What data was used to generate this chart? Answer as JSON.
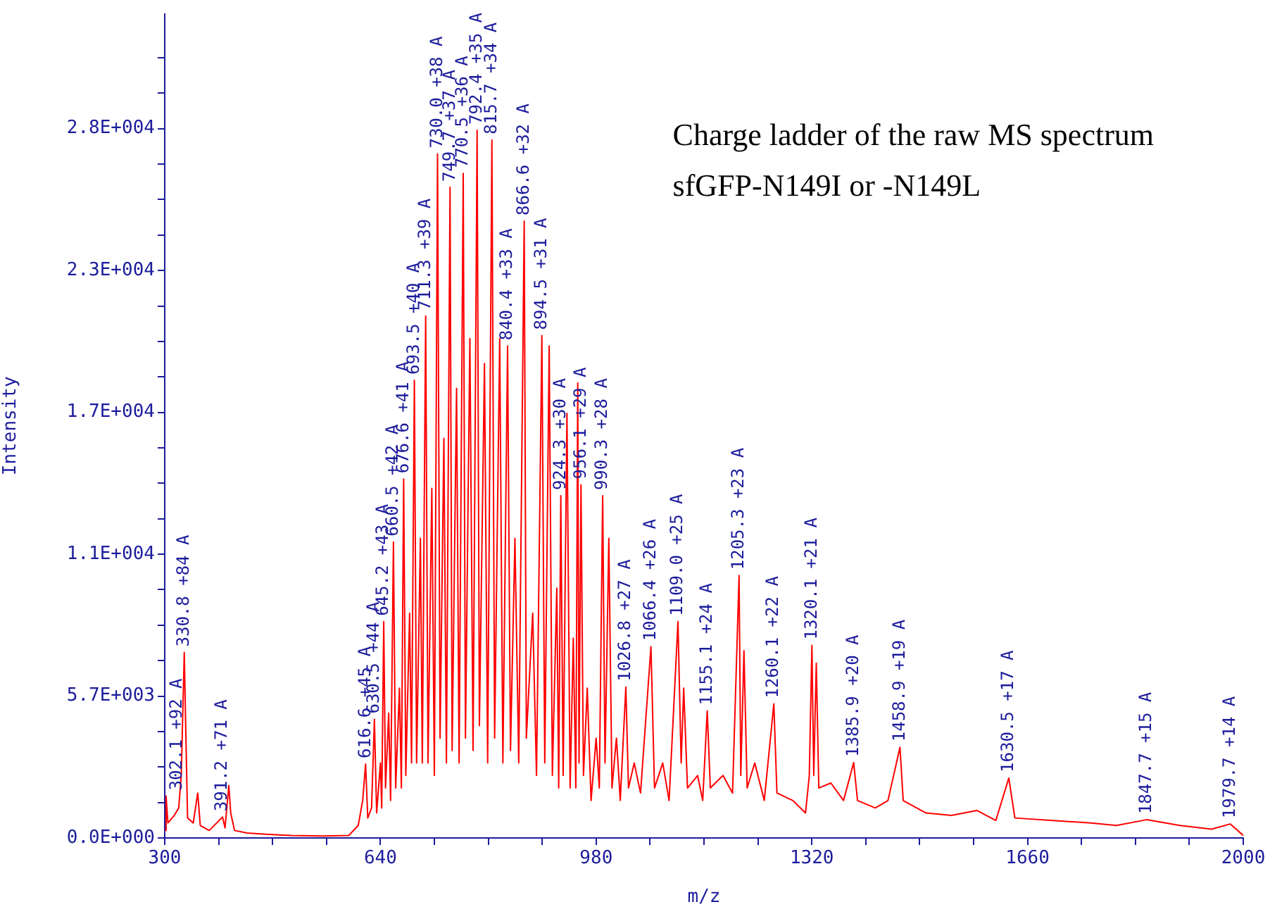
{
  "chart_data": {
    "type": "line",
    "title": "Charge ladder of the raw MS spectrum",
    "subtitle": "sfGFP-N149I or -N149L",
    "xlabel": "m/z",
    "ylabel": "Intensity",
    "xlim": [
      300,
      2000
    ],
    "xticks": [
      300,
      {
        "value": 385,
        "label": null
      },
      {
        "value": 470,
        "label": null
      },
      {
        "value": 555,
        "label": null
      },
      640,
      {
        "value": 725,
        "label": null
      },
      {
        "value": 810,
        "label": null
      },
      {
        "value": 895,
        "label": null
      },
      980,
      {
        "value": 1065,
        "label": null
      },
      {
        "value": 1150,
        "label": null
      },
      {
        "value": 1235,
        "label": null
      },
      1320,
      {
        "value": 1405,
        "label": null
      },
      {
        "value": 1490,
        "label": null
      },
      {
        "value": 1575,
        "label": null
      },
      1660,
      {
        "value": 1745,
        "label": null
      },
      {
        "value": 1830,
        "label": null
      },
      {
        "value": 1915,
        "label": null
      },
      2000
    ],
    "ylim": [
      0,
      33000
    ],
    "yticks": [
      {
        "value": 0,
        "label": "0.0E+000"
      },
      {
        "value": 1420,
        "label": null
      },
      {
        "value": 2840,
        "label": null
      },
      {
        "value": 4260,
        "label": null
      },
      {
        "value": 5680,
        "label": "5.7E+003"
      },
      {
        "value": 7100,
        "label": null
      },
      {
        "value": 8520,
        "label": null
      },
      {
        "value": 9940,
        "label": null
      },
      {
        "value": 11360,
        "label": "1.1E+004"
      },
      {
        "value": 12780,
        "label": null
      },
      {
        "value": 14200,
        "label": null
      },
      {
        "value": 15620,
        "label": null
      },
      {
        "value": 17040,
        "label": "1.7E+004"
      },
      {
        "value": 18460,
        "label": null
      },
      {
        "value": 19880,
        "label": null
      },
      {
        "value": 21300,
        "label": null
      },
      {
        "value": 22720,
        "label": "2.3E+004"
      },
      {
        "value": 24140,
        "label": null
      },
      {
        "value": 25560,
        "label": null
      },
      {
        "value": 26980,
        "label": null
      },
      {
        "value": 28400,
        "label": "2.8E+004"
      },
      {
        "value": 29820,
        "label": null
      },
      {
        "value": 31240,
        "label": null
      }
    ],
    "marker": "none",
    "line_style": "solid",
    "legend": false,
    "series": [
      {
        "color": "#ff0000",
        "x": [
          300,
          302.1,
          305,
          315,
          322,
          326,
          330.8,
          333,
          336,
          345,
          352,
          356,
          370,
          391.2,
          395,
          401,
          404,
          410,
          430,
          460,
          500,
          550,
          590,
          605,
          612,
          616.6,
          620,
          626,
          630.5,
          634,
          640,
          642,
          645.2,
          648,
          653,
          656,
          660.5,
          664,
          670,
          673,
          676.6,
          680,
          686,
          689,
          693.5,
          697,
          703,
          706,
          711.3,
          715,
          721,
          725,
          730.0,
          734,
          740,
          744,
          749.7,
          753,
          760,
          764,
          770.5,
          774,
          781,
          786,
          792.4,
          796,
          804,
          809,
          815.7,
          820,
          828,
          833,
          840.4,
          845,
          852,
          858,
          866.6,
          870,
          880,
          886,
          894.5,
          899,
          906,
          911,
          918,
          921,
          924.3,
          928,
          934,
          939,
          944,
          948,
          951,
          953,
          956.1,
          960,
          966,
          972,
          980,
          985,
          990.3,
          994,
          1000,
          1005,
          1012,
          1018,
          1026.8,
          1031,
          1040,
          1050,
          1066.4,
          1072,
          1085,
          1095,
          1109.0,
          1114,
          1118,
          1124,
          1140,
          1148,
          1155.1,
          1160,
          1180,
          1195,
          1205.3,
          1208,
          1213,
          1218,
          1230,
          1245,
          1260.1,
          1265,
          1290,
          1310,
          1316,
          1320.1,
          1323,
          1327,
          1331,
          1350,
          1370,
          1385.9,
          1392,
          1420,
          1440,
          1458.9,
          1464,
          1500,
          1540,
          1580,
          1610,
          1630.5,
          1640,
          1700,
          1760,
          1800,
          1847.7,
          1900,
          1950,
          1979.7,
          2000
        ],
        "values": [
          300,
          1680,
          600,
          900,
          1200,
          2500,
          7430,
          4500,
          800,
          600,
          1800,
          500,
          300,
          840,
          400,
          2100,
          1000,
          300,
          200,
          150,
          100,
          80,
          100,
          500,
          1500,
          2960,
          800,
          1200,
          4750,
          1000,
          3000,
          1200,
          8660,
          2000,
          5000,
          1500,
          11850,
          2000,
          6000,
          2000,
          14370,
          2500,
          9000,
          3000,
          18330,
          3000,
          12000,
          3000,
          20900,
          3000,
          14000,
          2500,
          27390,
          4000,
          16000,
          3000,
          26050,
          3500,
          18000,
          3000,
          26610,
          4000,
          20000,
          3500,
          28340,
          4500,
          19000,
          3000,
          27950,
          4000,
          20000,
          3000,
          19700,
          3500,
          12000,
          3000,
          24700,
          4000,
          9000,
          2500,
          20120,
          3000,
          19700,
          2500,
          10000,
          2000,
          13700,
          2500,
          17000,
          2000,
          8000,
          2000,
          18220,
          3000,
          14140,
          2500,
          6000,
          1500,
          4000,
          2000,
          13700,
          3000,
          12000,
          2000,
          4000,
          1500,
          6040,
          2000,
          3000,
          1800,
          7660,
          2000,
          3000,
          1500,
          8660,
          3000,
          6000,
          2000,
          2500,
          1500,
          5090,
          2000,
          2500,
          1800,
          10510,
          2500,
          7500,
          2000,
          3000,
          1500,
          5370,
          1800,
          1500,
          1000,
          2500,
          7710,
          2500,
          7000,
          2000,
          2200,
          1500,
          3020,
          1500,
          1200,
          1500,
          3630,
          1500,
          1000,
          900,
          1100,
          700,
          2400,
          800,
          700,
          600,
          500,
          730,
          500,
          350,
          560,
          100
        ]
      }
    ],
    "annotations": [
      {
        "text": "302.1 +92 A",
        "x": 302.1,
        "y": 1680
      },
      {
        "text": "330.8 +84 A",
        "x": 330.8,
        "y": 7430
      },
      {
        "text": "391.2 +71 A",
        "x": 391.2,
        "y": 840
      },
      {
        "text": "616.6 +45 A",
        "x": 616.6,
        "y": 2960
      },
      {
        "text": "630.5 +44 A",
        "x": 630.5,
        "y": 4750
      },
      {
        "text": "645.2 +43 A",
        "x": 645.2,
        "y": 8660
      },
      {
        "text": "660.5 +42 A",
        "x": 660.5,
        "y": 11850
      },
      {
        "text": "676.6 +41 A",
        "x": 676.6,
        "y": 14370
      },
      {
        "text": "693.5 +40 A",
        "x": 693.5,
        "y": 18330
      },
      {
        "text": "711.3 +39 A",
        "x": 711.3,
        "y": 20900
      },
      {
        "text": "730.0 +38 A",
        "x": 730.0,
        "y": 27390
      },
      {
        "text": "749.7 +37 A",
        "x": 749.7,
        "y": 26050
      },
      {
        "text": "770.5 +36 A",
        "x": 770.5,
        "y": 26610
      },
      {
        "text": "792.4 +35 A",
        "x": 792.4,
        "y": 28340
      },
      {
        "text": "815.7 +34 A",
        "x": 815.7,
        "y": 27950
      },
      {
        "text": "840.4 +33 A",
        "x": 840.4,
        "y": 19700
      },
      {
        "text": "866.6 +32 A",
        "x": 866.6,
        "y": 24700
      },
      {
        "text": "894.5 +31 A",
        "x": 894.5,
        "y": 20120
      },
      {
        "text": "924.3 +30 A",
        "x": 924.3,
        "y": 13700
      },
      {
        "text": "956.1 +29 A",
        "x": 956.1,
        "y": 14140
      },
      {
        "text": "990.3 +28 A",
        "x": 990.3,
        "y": 13700
      },
      {
        "text": "1026.8 +27 A",
        "x": 1026.8,
        "y": 6040
      },
      {
        "text": "1066.4 +26 A",
        "x": 1066.4,
        "y": 7660
      },
      {
        "text": "1109.0 +25 A",
        "x": 1109.0,
        "y": 8660
      },
      {
        "text": "1155.1 +24 A",
        "x": 1155.1,
        "y": 5090
      },
      {
        "text": "1205.3 +23 A",
        "x": 1205.3,
        "y": 10510
      },
      {
        "text": "1260.1 +22 A",
        "x": 1260.1,
        "y": 5370
      },
      {
        "text": "1320.1 +21 A",
        "x": 1320.1,
        "y": 7710
      },
      {
        "text": "1385.9 +20 A",
        "x": 1385.9,
        "y": 3020
      },
      {
        "text": "1458.9 +19 A",
        "x": 1458.9,
        "y": 3630
      },
      {
        "text": "1630.5 +17 A",
        "x": 1630.5,
        "y": 2400
      },
      {
        "text": "1847.7 +15 A",
        "x": 1847.7,
        "y": 730
      },
      {
        "text": "1979.7 +14 A",
        "x": 1979.7,
        "y": 560
      }
    ]
  }
}
